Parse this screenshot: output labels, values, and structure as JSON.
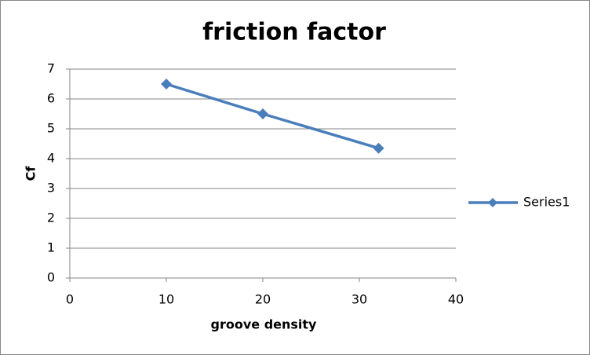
{
  "chart_data": {
    "type": "line",
    "title": "friction factor",
    "x_label": "groove density",
    "y_label": "Cf",
    "x": [
      10,
      20,
      32
    ],
    "series": [
      {
        "name": "Series1",
        "color": "#4a7ebb",
        "values": [
          6.5,
          5.5,
          4.35
        ]
      }
    ],
    "xlim": [
      0,
      40
    ],
    "xticks": [
      0,
      10,
      20,
      30,
      40
    ],
    "ylim": [
      0,
      7
    ],
    "yticks": [
      0,
      1,
      2,
      3,
      4,
      5,
      6,
      7
    ],
    "grid": true,
    "legend": "right"
  }
}
